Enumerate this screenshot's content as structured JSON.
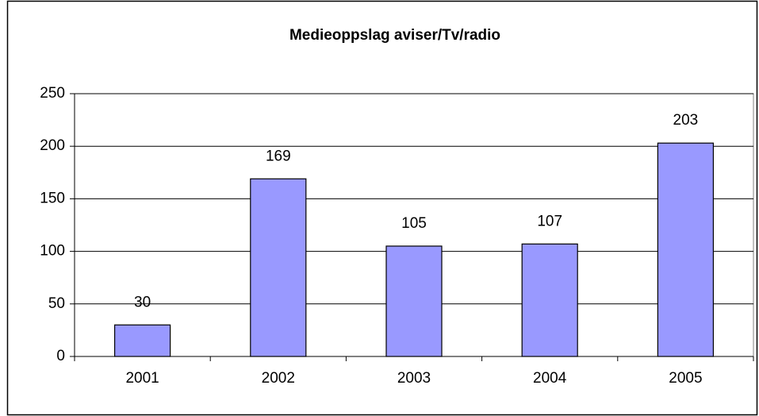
{
  "chart_data": {
    "type": "bar",
    "title": "Medieoppslag aviser/Tv/radio",
    "categories": [
      "2001",
      "2002",
      "2003",
      "2004",
      "2005"
    ],
    "values": [
      30,
      169,
      105,
      107,
      203
    ],
    "color": "#9999ff",
    "ylim": [
      0,
      250
    ],
    "yticks": [
      0,
      50,
      100,
      150,
      200,
      250
    ],
    "grid": true
  }
}
